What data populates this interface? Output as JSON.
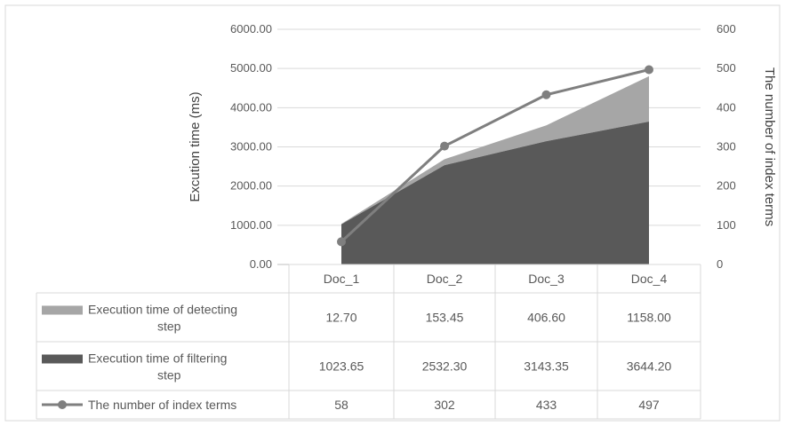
{
  "chart_data": {
    "type": "area",
    "categories": [
      "Doc_1",
      "Doc_2",
      "Doc_3",
      "Doc_4"
    ],
    "series": [
      {
        "name": "Execution time of detecting step",
        "kind": "stacked-area",
        "axis": "left",
        "color": "#a6a6a6",
        "values": [
          12.7,
          153.45,
          406.6,
          1158.0
        ],
        "labels": [
          "12.70",
          "153.45",
          "406.60",
          "1158.00"
        ]
      },
      {
        "name": "Execution time of filtering step",
        "kind": "stacked-area",
        "axis": "left",
        "color": "#595959",
        "values": [
          1023.65,
          2532.3,
          3143.35,
          3644.2
        ],
        "labels": [
          "1023.65",
          "2532.30",
          "3143.35",
          "3644.20"
        ]
      },
      {
        "name": "The number of index terms",
        "kind": "line-with-markers",
        "axis": "right",
        "color": "#7f7f7f",
        "values": [
          58,
          302,
          433,
          497
        ],
        "labels": [
          "58",
          "302",
          "433",
          "497"
        ]
      }
    ],
    "y_left": {
      "label": "Excution time (ms)",
      "ylim": [
        0,
        6000
      ],
      "ticks": [
        "0.00",
        "1000.00",
        "2000.00",
        "3000.00",
        "4000.00",
        "5000.00",
        "6000.00"
      ]
    },
    "y_right": {
      "label": "The number of index terms",
      "ylim": [
        0,
        600
      ],
      "ticks": [
        "0",
        "100",
        "200",
        "300",
        "400",
        "500",
        "600"
      ]
    },
    "grid": true,
    "legend": "data-table"
  }
}
